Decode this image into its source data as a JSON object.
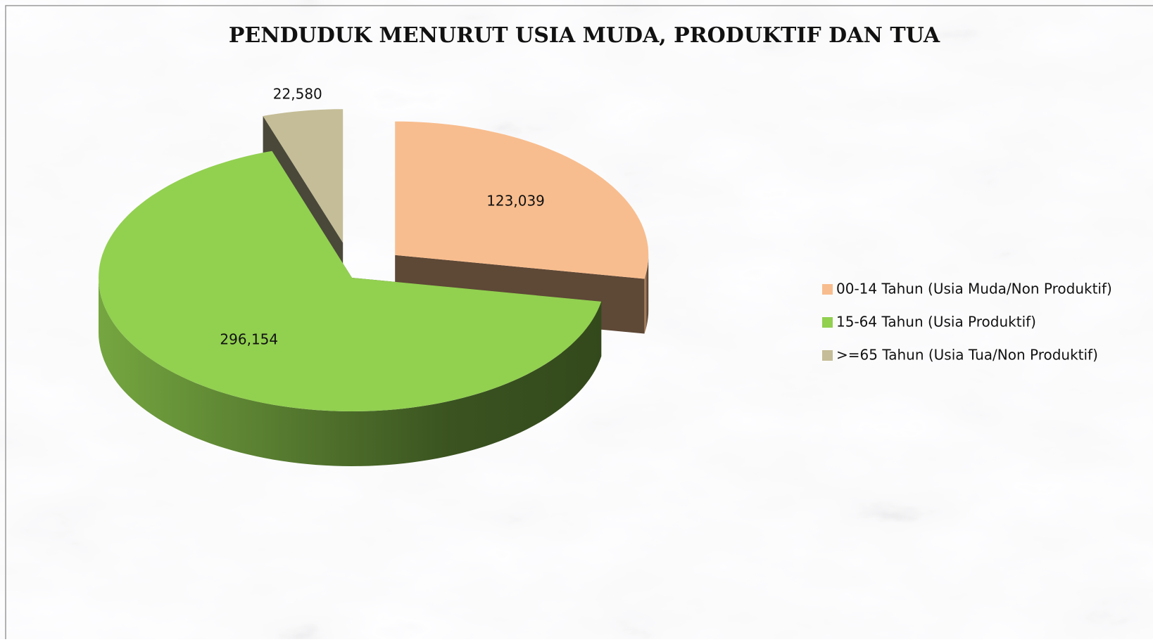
{
  "chart_data": {
    "type": "pie3d",
    "title": "PENDUDUK MENURUT USIA MUDA, PRODUKTIF DAN TUA",
    "categories": [
      "00-14 Tahun (Usia Muda/Non Produktif)",
      "15-64 Tahun (Usia Produktif)",
      ">=65 Tahun (Usia Tua/Non Produktif)"
    ],
    "values": [
      123039,
      296154,
      22580
    ],
    "value_labels": [
      "123,039",
      "296,154",
      "22,580"
    ],
    "colors": [
      "#f8bd8e",
      "#92d050",
      "#c4bd97"
    ],
    "legend": "right"
  }
}
